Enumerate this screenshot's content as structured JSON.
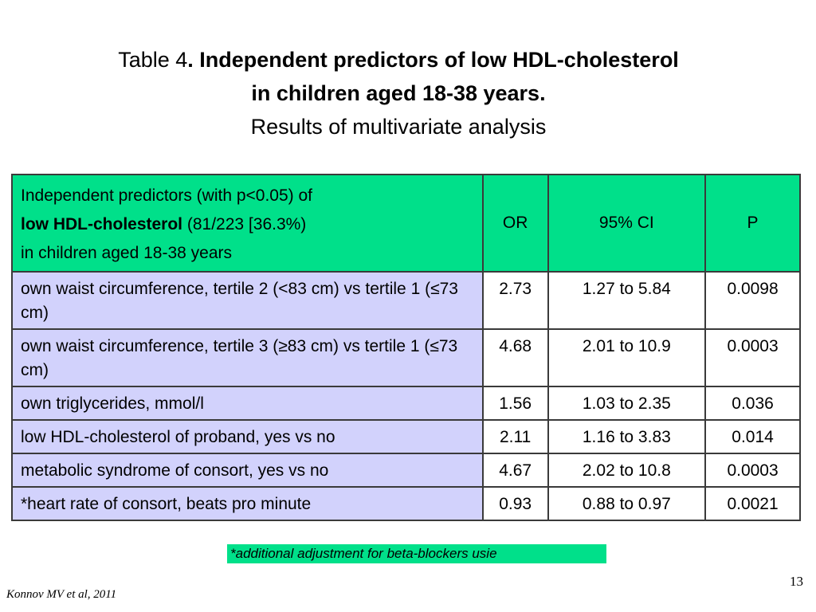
{
  "title": {
    "prefix": "Table 4",
    "bold_line1": ". Independent predictors of low HDL-cholesterol",
    "bold_line2": "in children aged 18-38 years.",
    "subtitle": "Results of multivariate analysis"
  },
  "table": {
    "header": {
      "predictor_line1": "Independent predictors (with p<0.05) of",
      "predictor_bold": "low HDL-cholesterol",
      "predictor_line2_rest": " (81/223 [36.3%)",
      "predictor_line3": "in children aged 18-38 years",
      "or": "OR",
      "ci": "95% CI",
      "p": "P"
    },
    "rows": [
      {
        "predictor": "own waist circumference, tertile 2 (<83 cm) vs tertile 1 (≤73 cm)",
        "or": "2.73",
        "ci": "1.27 to 5.84",
        "p": "0.0098"
      },
      {
        "predictor": "own waist circumference, tertile 3 (≥83 cm) vs tertile 1 (≤73 cm)",
        "or": "4.68",
        "ci": "2.01 to 10.9",
        "p": "0.0003"
      },
      {
        "predictor": "own triglycerides, mmol/l",
        "or": "1.56",
        "ci": "1.03 to 2.35",
        "p": "0.036"
      },
      {
        "predictor": "low HDL-cholesterol of proband, yes vs no",
        "or": "2.11",
        "ci": "1.16 to 3.83",
        "p": "0.014"
      },
      {
        "predictor": "metabolic syndrome of consort, yes vs no",
        "or": "4.67",
        "ci": "2.02 to 10.8",
        "p": "0.0003"
      },
      {
        "predictor": "*heart rate of consort, beats pro minute",
        "or": "0.93",
        "ci": "0.88 to 0.97",
        "p": "0.0021"
      }
    ]
  },
  "footnote": "*additional adjustment for beta-blockers usie",
  "page_number": "13",
  "citation": "Konnov MV et al, 2011",
  "colors": {
    "header_bg": "#00e08a",
    "predictor_bg": "#d2d2fc",
    "footnote_bg": "#00e08a"
  }
}
